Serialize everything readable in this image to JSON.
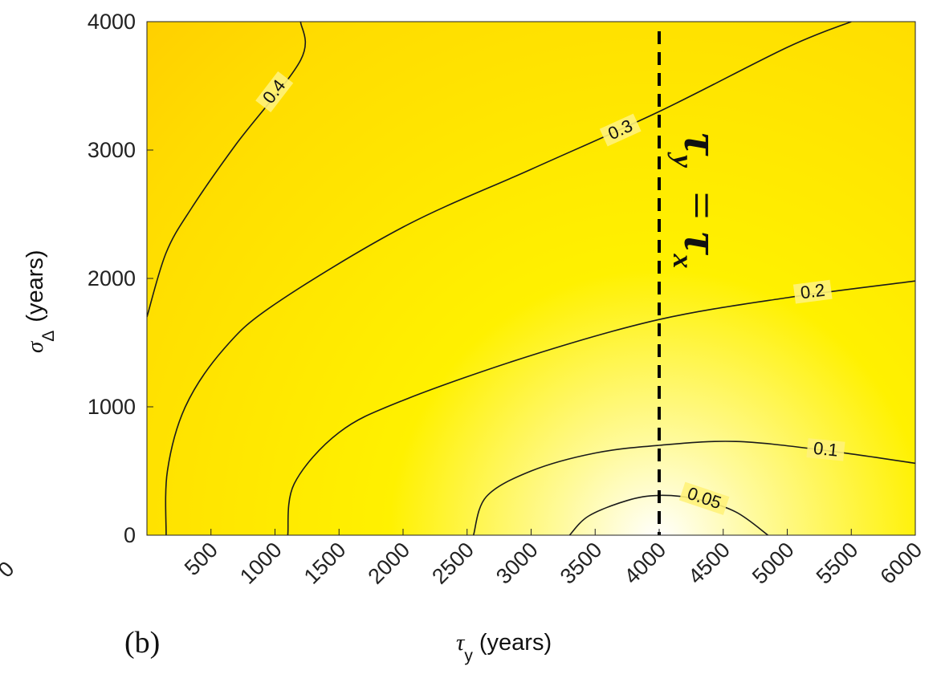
{
  "panel_label": "(b)",
  "chart_data": {
    "type": "contour",
    "xlabel": {
      "symbol": "τ",
      "sub": "y",
      "unit": "(years)"
    },
    "ylabel": {
      "symbol": "σ",
      "sub": "Δ",
      "unit": "(years)"
    },
    "xlim": [
      0,
      6000
    ],
    "ylim": [
      0,
      4000
    ],
    "x_ticks": [
      500,
      1000,
      1500,
      2000,
      2500,
      3000,
      3500,
      4000,
      4500,
      5000,
      5500,
      6000
    ],
    "y_ticks": [
      0,
      1000,
      2000,
      3000,
      4000
    ],
    "partial_tick_label": "0",
    "colors": {
      "low": "#ffffff",
      "mid": "#fff000",
      "high": "#ffc800"
    },
    "contours": [
      {
        "level": "0.4",
        "points": [
          [
            0,
            1700
          ],
          [
            150,
            2200
          ],
          [
            350,
            2550
          ],
          [
            700,
            3050
          ],
          [
            1200,
            3700
          ],
          [
            1200,
            4000
          ]
        ]
      },
      {
        "level": "0.3",
        "points": [
          [
            150,
            0
          ],
          [
            160,
            500
          ],
          [
            300,
            1000
          ],
          [
            600,
            1450
          ],
          [
            1000,
            1800
          ],
          [
            2000,
            2400
          ],
          [
            3000,
            2850
          ],
          [
            4000,
            3300
          ],
          [
            5000,
            3800
          ],
          [
            5500,
            4000
          ]
        ]
      },
      {
        "level": "0.2",
        "points": [
          [
            1100,
            0
          ],
          [
            1150,
            400
          ],
          [
            1500,
            800
          ],
          [
            2000,
            1050
          ],
          [
            3000,
            1400
          ],
          [
            4000,
            1680
          ],
          [
            5000,
            1850
          ],
          [
            6000,
            1980
          ]
        ]
      },
      {
        "level": "0.1",
        "points": [
          [
            2550,
            0
          ],
          [
            2650,
            300
          ],
          [
            3000,
            500
          ],
          [
            3500,
            640
          ],
          [
            4000,
            700
          ],
          [
            4600,
            730
          ],
          [
            5300,
            660
          ],
          [
            6000,
            560
          ]
        ]
      },
      {
        "level": "0.05",
        "points": [
          [
            3300,
            0
          ],
          [
            3450,
            150
          ],
          [
            3750,
            270
          ],
          [
            4000,
            310
          ],
          [
            4300,
            280
          ],
          [
            4600,
            180
          ],
          [
            4850,
            0
          ]
        ]
      }
    ],
    "reference_line": {
      "x": 4000,
      "label": "τy = τx"
    }
  }
}
